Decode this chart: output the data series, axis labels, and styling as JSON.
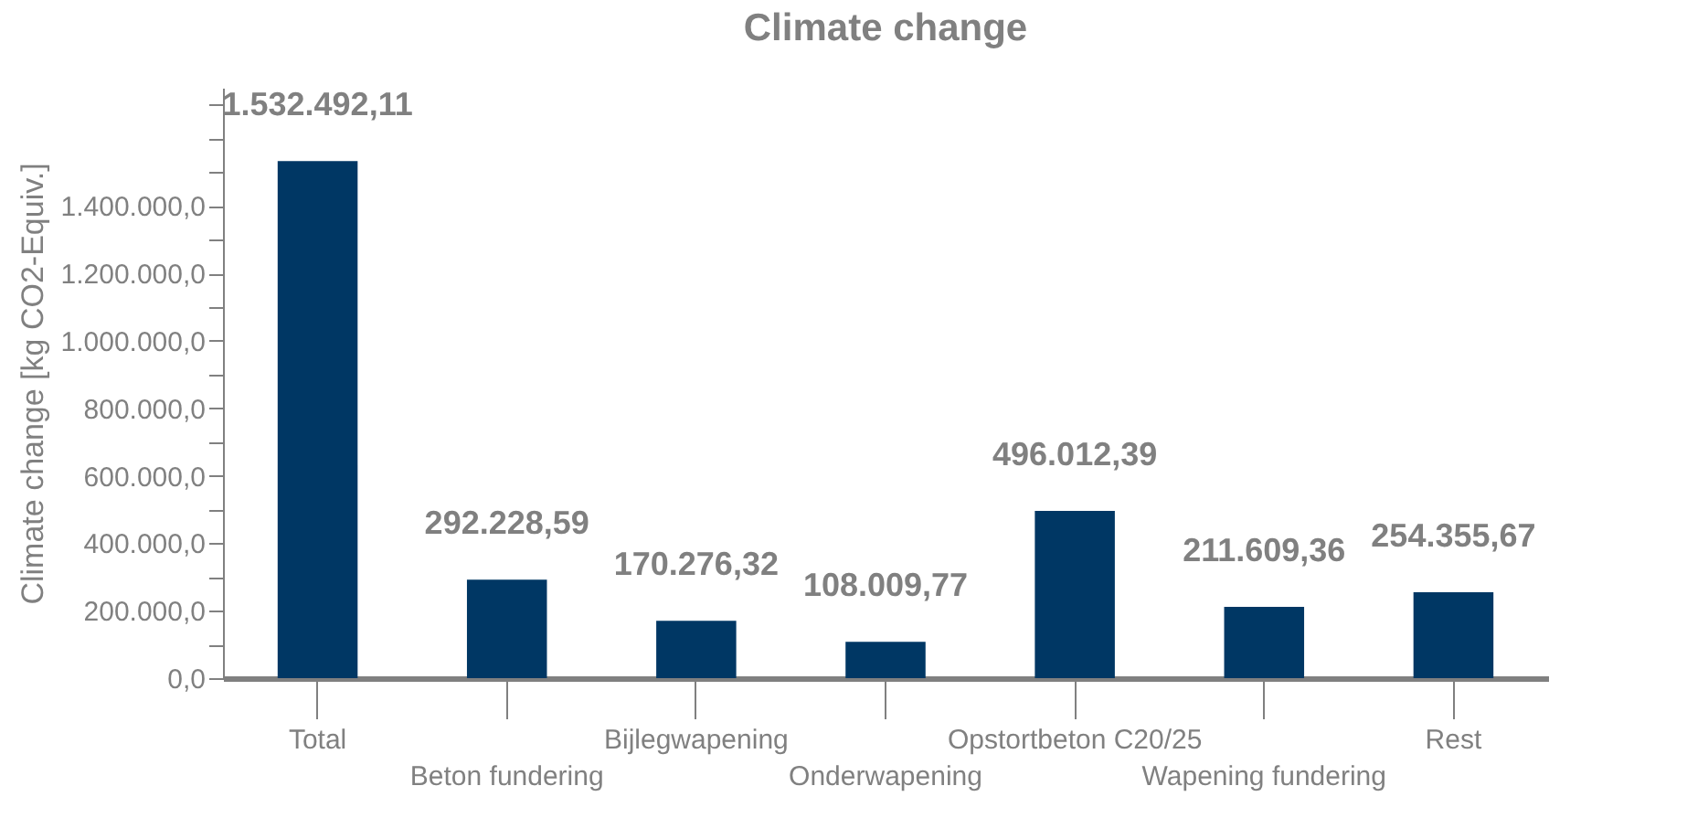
{
  "chart_data": {
    "type": "bar",
    "title": "Climate change",
    "ylabel": "Climate change [kg CO2-Equiv.]",
    "categories": [
      "Total",
      "Beton fundering",
      "Bijlegwapening",
      "Onderwapening",
      "Opstortbeton C20/25",
      "Wapening fundering",
      "Rest"
    ],
    "values": [
      1532492.11,
      292228.59,
      170276.32,
      108009.77,
      496012.39,
      211609.36,
      254355.67
    ],
    "value_labels": [
      "1.532.492,11",
      "292.228,59",
      "170.276,32",
      "108.009,77",
      "496.012,39",
      "211.609,36",
      "254.355,67"
    ],
    "color": "#003764",
    "ylim": [
      0,
      1750000
    ],
    "yticks": [
      {
        "value": 0,
        "label": "0,0"
      },
      {
        "value": 100000,
        "label": null
      },
      {
        "value": 200000,
        "label": "200.000,0"
      },
      {
        "value": 300000,
        "label": null
      },
      {
        "value": 400000,
        "label": "400.000,0"
      },
      {
        "value": 500000,
        "label": null
      },
      {
        "value": 600000,
        "label": "600.000,0"
      },
      {
        "value": 700000,
        "label": null
      },
      {
        "value": 800000,
        "label": "800.000,0"
      },
      {
        "value": 900000,
        "label": null
      },
      {
        "value": 1000000,
        "label": "1.000.000,0"
      },
      {
        "value": 1100000,
        "label": null
      },
      {
        "value": 1200000,
        "label": "1.200.000,0"
      },
      {
        "value": 1300000,
        "label": null
      },
      {
        "value": 1400000,
        "label": "1.400.000,0"
      },
      {
        "value": 1500000,
        "label": null
      },
      {
        "value": 1600000,
        "label": null
      },
      {
        "value": 1700000,
        "label": null
      }
    ],
    "grid": false
  }
}
